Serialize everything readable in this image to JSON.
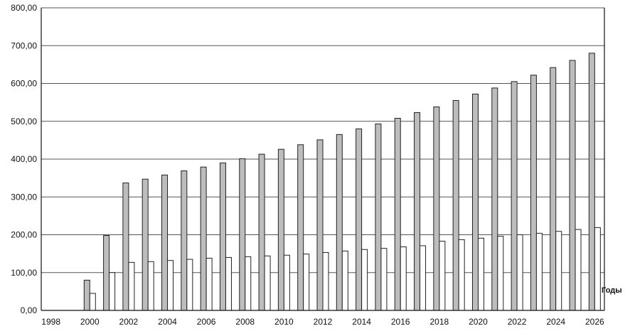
{
  "chart_data": {
    "type": "bar",
    "title": "",
    "xlabel": "Годы",
    "ylabel": "",
    "ylim": [
      0,
      800
    ],
    "grid": "horizontal",
    "legend": "none",
    "y_ticks": [
      "0,00",
      "100,00",
      "200,00",
      "300,00",
      "400,00",
      "500,00",
      "600,00",
      "700,00",
      "800,00"
    ],
    "x_tick_labels": [
      "1998",
      "2000",
      "2002",
      "2004",
      "2006",
      "2008",
      "2010",
      "2012",
      "2014",
      "2016",
      "2018",
      "2020",
      "2022",
      "2024",
      "2026"
    ],
    "categories": [
      "1998",
      "1999",
      "2000",
      "2001",
      "2002",
      "2003",
      "2004",
      "2005",
      "2006",
      "2007",
      "2008",
      "2009",
      "2010",
      "2011",
      "2012",
      "2013",
      "2014",
      "2015",
      "2016",
      "2017",
      "2018",
      "2019",
      "2020",
      "2021",
      "2022",
      "2023",
      "2024",
      "2025",
      "2026"
    ],
    "series": [
      {
        "color": "#bdbdbd",
        "values": [
          null,
          null,
          80,
          198,
          337,
          347,
          358,
          369,
          379,
          390,
          401,
          413,
          426,
          438,
          451,
          465,
          480,
          493,
          508,
          523,
          538,
          555,
          572,
          588,
          605,
          622,
          642,
          661,
          680
        ]
      },
      {
        "color": "#ffffff",
        "values": [
          null,
          null,
          45,
          100,
          127,
          129,
          132,
          135,
          138,
          140,
          142,
          144,
          146,
          149,
          153,
          157,
          161,
          164,
          168,
          171,
          183,
          187,
          191,
          196,
          200,
          204,
          209,
          214,
          219
        ]
      }
    ]
  }
}
